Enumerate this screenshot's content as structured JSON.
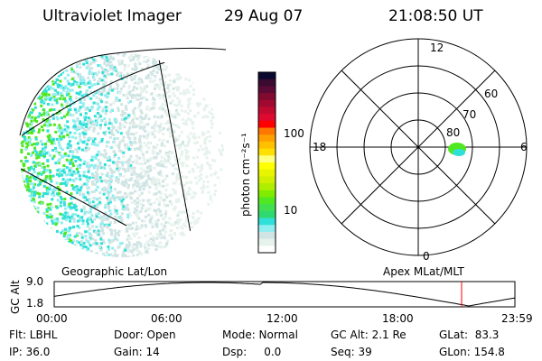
{
  "header": {
    "instrument": "Ultraviolet Imager",
    "date": "29 Aug 07",
    "time": "21:08:50 UT"
  },
  "colorbar": {
    "label": "photon cm⁻²s⁻¹",
    "ticks": [
      "100",
      "10"
    ],
    "colors": [
      "#0a0a30",
      "#3a0a30",
      "#5a0a35",
      "#800a30",
      "#a00a30",
      "#c00a30",
      "#e00a30",
      "#ff0000",
      "#ff7700",
      "#ffa000",
      "#ffc000",
      "#ffe000",
      "#ffff80",
      "#ffff00",
      "#e8f500",
      "#d0f000",
      "#b0ee00",
      "#80ec00",
      "#50e820",
      "#40e050",
      "#30d870",
      "#30e0d8",
      "#90eef0",
      "#d0e4e4",
      "#e6f2ec",
      "#ffffff"
    ]
  },
  "polar": {
    "labels": {
      "top": "12",
      "bottom": "0",
      "left": "18",
      "right": "6"
    },
    "lat_labels": [
      "80",
      "70",
      "60"
    ]
  },
  "left_map": {
    "label": "Geographic Lat/Lon"
  },
  "right_map": {
    "label": "Apex MLat/MLT"
  },
  "timeline": {
    "ylabel": "GC Alt",
    "ymax": "9.0",
    "ymin": "1.8",
    "xticks": [
      "00:00",
      "06:00",
      "12:00",
      "18:00",
      "23:59"
    ],
    "current_marker_color": "#ff0000"
  },
  "status": {
    "flt": "Flt: LBHL",
    "ip": "IP: 36.0",
    "door": "Door: Open",
    "gain": "Gain: 14",
    "mode": "Mode: Normal",
    "dsp": "Dsp:     0.0",
    "gcalt": "GC Alt: 2.1 Re",
    "seq": "Seq: 39",
    "glat": "GLat:  83.3",
    "glon": "GLon: 154.8"
  }
}
